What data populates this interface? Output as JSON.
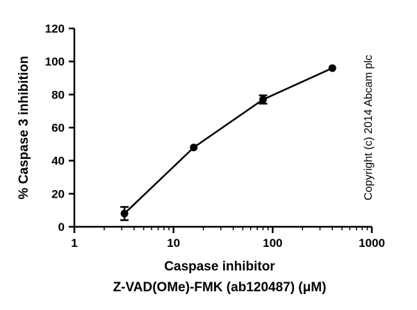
{
  "chart_data": {
    "type": "line",
    "x_scale": "log",
    "xlim": [
      1,
      1000
    ],
    "ylim": [
      0,
      120
    ],
    "x_ticks": [
      1,
      10,
      100,
      1000
    ],
    "y_ticks": [
      0,
      20,
      40,
      60,
      80,
      100,
      120
    ],
    "x_tick_labels": [
      "1",
      "10",
      "100",
      "1000"
    ],
    "y_tick_labels": [
      "0",
      "20",
      "40",
      "60",
      "80",
      "100",
      "120"
    ],
    "xlabel_line1": "Caspase inhibitor",
    "xlabel_line2": "Z-VAD(OMe)-FMK (ab120487) (μM)",
    "ylabel": "% Caspase 3 inhibition",
    "grid": false,
    "series": [
      {
        "x": [
          3.2,
          16,
          80,
          400
        ],
        "y": [
          8,
          48,
          77,
          96
        ],
        "error": [
          4,
          0,
          2.5,
          0
        ],
        "color": "#000000",
        "marker": "circle"
      }
    ]
  },
  "copyright": "Copyright (c) 2014 Abcam plc"
}
